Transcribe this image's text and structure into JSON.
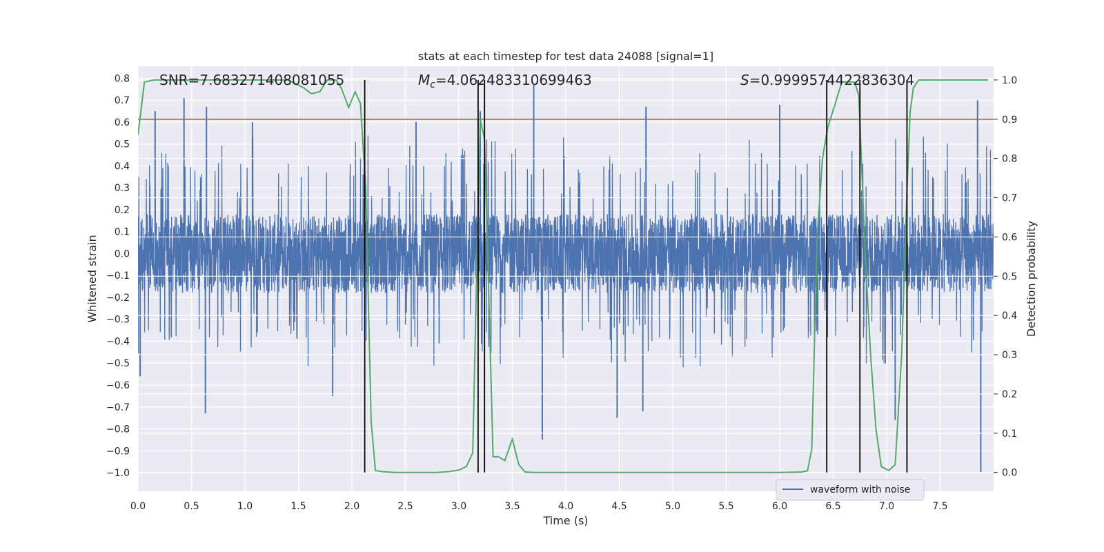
{
  "chart_data": {
    "type": "line",
    "title": "stats at each timestep for test data 24088 [signal=1]",
    "xlabel": "Time (s)",
    "ylabel": "Whitened strain",
    "y2label": "Detection probability",
    "xlim": [
      0,
      8.0
    ],
    "ylim": [
      -1.085,
      0.855
    ],
    "y2lim": [
      -0.048,
      1.035
    ],
    "x_ticks": [
      0.0,
      0.5,
      1.0,
      1.5,
      2.0,
      2.5,
      3.0,
      3.5,
      4.0,
      4.5,
      5.0,
      5.5,
      6.0,
      6.5,
      7.0,
      7.5
    ],
    "x_tick_labels": [
      "0.0",
      "0.5",
      "1.0",
      "1.5",
      "2.0",
      "2.5",
      "3.0",
      "3.5",
      "4.0",
      "4.5",
      "5.0",
      "5.5",
      "6.0",
      "6.5",
      "7.0",
      "7.5"
    ],
    "y_ticks": [
      0.8,
      0.7,
      0.6,
      0.5,
      0.4,
      0.3,
      0.2,
      0.1,
      0.0,
      -0.1,
      -0.2,
      -0.3,
      -0.4,
      -0.5,
      -0.6,
      -0.7,
      -0.8,
      -0.9,
      -1.0
    ],
    "y_tick_labels": [
      "0.8",
      "0.7",
      "0.6",
      "0.5",
      "0.4",
      "0.3",
      "0.2",
      "0.1",
      "0.0",
      "−0.1",
      "−0.2",
      "−0.3",
      "−0.4",
      "−0.5",
      "−0.6",
      "−0.7",
      "−0.8",
      "−0.9",
      "−1.0"
    ],
    "y2_ticks": [
      1.0,
      0.9,
      0.8,
      0.7,
      0.6,
      0.5,
      0.4,
      0.3,
      0.2,
      0.1,
      0.0
    ],
    "y2_tick_labels": [
      "1.0",
      "0.9",
      "0.8",
      "0.7",
      "0.6",
      "0.5",
      "0.4",
      "0.3",
      "0.2",
      "0.1",
      "0.0"
    ],
    "grid": true,
    "legend": {
      "position": "lower-right",
      "entries": [
        "waveform with noise"
      ]
    },
    "annotations": {
      "snr": "SNR=7.683271408081055",
      "mc_symbol": "M",
      "mc_sub": "c",
      "mc_value": "=4.062483310699463",
      "s_symbol": "S",
      "s_value": "=0.9999574422836304"
    },
    "waveform": {
      "name": "waveform with noise",
      "color": "#4c72b0",
      "duration_s": 8.0,
      "typical_range": [
        -0.4,
        0.42
      ],
      "spikes": [
        {
          "t": 0.02,
          "v": -0.56
        },
        {
          "t": 0.16,
          "v": 0.65
        },
        {
          "t": 0.43,
          "v": 0.71
        },
        {
          "t": 0.63,
          "v": -0.73
        },
        {
          "t": 0.64,
          "v": 0.67
        },
        {
          "t": 1.07,
          "v": 0.6
        },
        {
          "t": 1.82,
          "v": -0.65
        },
        {
          "t": 2.6,
          "v": 0.6
        },
        {
          "t": 3.2,
          "v": 0.65
        },
        {
          "t": 3.7,
          "v": 0.77
        },
        {
          "t": 3.78,
          "v": -0.85
        },
        {
          "t": 4.48,
          "v": -0.75
        },
        {
          "t": 4.72,
          "v": -0.72
        },
        {
          "t": 4.75,
          "v": 0.67
        },
        {
          "t": 6.0,
          "v": 0.68
        },
        {
          "t": 7.08,
          "v": -0.76
        },
        {
          "t": 7.85,
          "v": 0.7
        },
        {
          "t": 7.88,
          "v": -1.0
        }
      ]
    },
    "detection_probability": {
      "color": "#55a868",
      "x": [
        0.0,
        0.06,
        0.15,
        0.3,
        0.5,
        0.8,
        1.1,
        1.4,
        1.55,
        1.62,
        1.7,
        1.77,
        1.85,
        1.9,
        1.97,
        2.03,
        2.08,
        2.13,
        2.18,
        2.22,
        2.28,
        2.4,
        2.6,
        2.8,
        2.9,
        3.0,
        3.07,
        3.13,
        3.17,
        3.2,
        3.24,
        3.28,
        3.32,
        3.37,
        3.43,
        3.5,
        3.56,
        3.62,
        3.7,
        4.0,
        4.5,
        5.0,
        5.5,
        6.0,
        6.2,
        6.26,
        6.3,
        6.35,
        6.4,
        6.45,
        6.52,
        6.58,
        6.63,
        6.7,
        6.74,
        6.8,
        6.85,
        6.9,
        6.95,
        7.02,
        7.08,
        7.14,
        7.19,
        7.22,
        7.25,
        7.3,
        7.4,
        7.6,
        7.8,
        7.95
      ],
      "values": [
        0.86,
        0.995,
        1.0,
        1.0,
        1.0,
        1.0,
        1.0,
        1.0,
        0.98,
        0.965,
        0.97,
        1.0,
        1.0,
        0.98,
        0.93,
        0.97,
        0.94,
        0.72,
        0.13,
        0.005,
        0.002,
        0.0,
        0.0,
        0.0,
        0.002,
        0.006,
        0.015,
        0.05,
        0.55,
        0.9,
        0.85,
        0.45,
        0.04,
        0.04,
        0.03,
        0.085,
        0.02,
        0.001,
        0.0,
        0.0,
        0.0,
        0.0,
        0.0,
        0.0,
        0.001,
        0.004,
        0.06,
        0.6,
        0.8,
        0.88,
        0.94,
        0.995,
        0.995,
        0.995,
        0.96,
        0.55,
        0.3,
        0.11,
        0.015,
        0.005,
        0.02,
        0.3,
        0.72,
        0.92,
        0.98,
        1.0,
        1.0,
        1.0,
        1.0,
        1.0
      ]
    },
    "threshold_line": {
      "color": "#c44e52",
      "value": 0.9
    },
    "vertical_markers": {
      "color": "#000000",
      "x": [
        2.12,
        3.18,
        3.24,
        6.44,
        6.75,
        7.19
      ],
      "ymax": 1.0
    }
  }
}
